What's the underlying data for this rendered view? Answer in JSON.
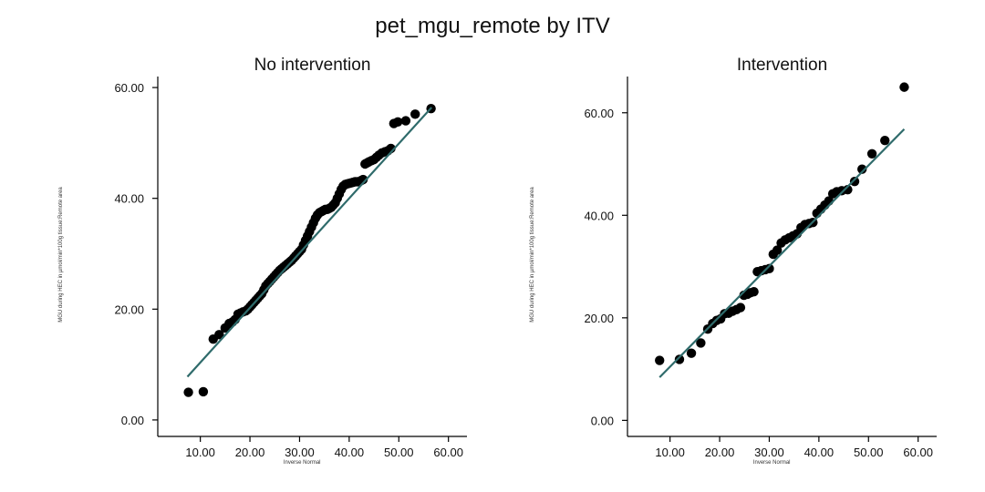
{
  "title": "pet_mgu_remote by ITV",
  "colors": {
    "point": "#000000",
    "line": "#2f6b6b"
  },
  "chart_data": [
    {
      "type": "scatter",
      "title": "No intervention",
      "xlabel": "Inverse Normal",
      "ylabel": "MGU during HEC in µmol/min*100g tissue:Remote area",
      "xlim": [
        4,
        63
      ],
      "ylim": [
        -1,
        61
      ],
      "xticks": [
        "10.00",
        "20.00",
        "30.00",
        "40.00",
        "50.00",
        "60.00"
      ],
      "yticks": [
        "0.00",
        "20.00",
        "40.00",
        "60.00"
      ],
      "points": {
        "x": [
          7.6,
          10.6,
          12.6,
          13.8,
          15.0,
          15.8,
          16.5,
          17.0,
          17.6,
          18.1,
          18.6,
          19.2,
          19.6,
          20.0,
          20.4,
          20.8,
          21.2,
          21.6,
          22.0,
          22.4,
          22.8,
          23.2,
          23.6,
          24.0,
          24.4,
          24.8,
          25.2,
          25.6,
          26.0,
          26.4,
          26.8,
          27.2,
          27.6,
          28.0,
          28.4,
          28.8,
          29.2,
          29.6,
          30.0,
          30.4,
          30.8,
          31.2,
          31.6,
          32.0,
          32.4,
          32.8,
          33.2,
          33.6,
          34.0,
          34.4,
          34.8,
          35.2,
          35.6,
          36.0,
          36.4,
          36.8,
          37.2,
          37.6,
          38.0,
          38.4,
          38.8,
          39.2,
          39.6,
          40.0,
          40.4,
          40.8,
          41.2,
          41.6,
          42.0,
          42.4,
          42.8,
          43.2,
          43.6,
          44.0,
          44.5,
          45.0,
          45.5,
          46.0,
          46.6,
          47.2,
          47.8,
          48.4,
          49.0,
          49.8,
          51.4,
          53.3,
          56.5
        ],
        "y": [
          5.0,
          5.1,
          14.6,
          15.4,
          16.6,
          17.4,
          17.7,
          18.1,
          19.1,
          19.3,
          19.5,
          19.7,
          20.0,
          20.4,
          20.8,
          21.2,
          21.6,
          22.0,
          22.4,
          22.8,
          23.5,
          24.2,
          24.6,
          25.0,
          25.4,
          25.8,
          26.2,
          26.6,
          27.0,
          27.3,
          27.6,
          27.9,
          28.2,
          28.5,
          28.8,
          29.2,
          29.6,
          30.0,
          30.4,
          30.8,
          31.6,
          32.4,
          33.2,
          34.0,
          34.8,
          35.6,
          36.4,
          37.0,
          37.4,
          37.6,
          37.8,
          38.0,
          38.0,
          38.2,
          38.4,
          38.8,
          39.2,
          40.0,
          40.8,
          41.6,
          42.2,
          42.5,
          42.6,
          42.7,
          42.8,
          42.9,
          43.0,
          43.0,
          43.0,
          43.2,
          43.4,
          46.2,
          46.4,
          46.6,
          46.8,
          47.0,
          47.4,
          47.8,
          48.2,
          48.4,
          48.6,
          49.0,
          53.5,
          53.8,
          54.0,
          55.2,
          56.2
        ]
      },
      "fit_line": {
        "x": [
          7.4,
          56.6
        ],
        "y": [
          7.8,
          56.4
        ]
      }
    },
    {
      "type": "scatter",
      "title": "Intervention",
      "xlabel": "Inverse Normal",
      "ylabel": "MGU during HEC in µmol/min*100g tissue:Remote area",
      "xlim": [
        4,
        63
      ],
      "ylim": [
        -1,
        66
      ],
      "xticks": [
        "10.00",
        "20.00",
        "30.00",
        "40.00",
        "50.00",
        "60.00"
      ],
      "yticks": [
        "0.00",
        "20.00",
        "40.00",
        "60.00"
      ],
      "points": {
        "x": [
          7.9,
          11.9,
          14.3,
          16.2,
          17.6,
          18.6,
          19.4,
          20.2,
          21.0,
          21.8,
          22.6,
          23.4,
          24.2,
          24.9,
          25.6,
          26.2,
          26.9,
          27.6,
          28.4,
          29.2,
          30.0,
          30.8,
          31.6,
          32.4,
          33.2,
          34.0,
          34.8,
          35.6,
          36.4,
          37.2,
          38.0,
          38.8,
          39.6,
          40.4,
          41.2,
          42.0,
          42.8,
          43.6,
          44.6,
          45.8,
          47.2,
          48.7,
          50.7,
          53.3,
          57.2
        ],
        "y": [
          11.7,
          11.9,
          13.1,
          15.1,
          17.8,
          18.9,
          19.5,
          19.8,
          20.8,
          20.9,
          21.3,
          21.6,
          22.0,
          24.4,
          24.6,
          24.9,
          25.1,
          29.0,
          29.2,
          29.4,
          29.6,
          32.4,
          33.2,
          34.6,
          35.2,
          35.6,
          36.0,
          36.4,
          37.6,
          38.2,
          38.4,
          38.6,
          40.4,
          41.2,
          42.0,
          42.8,
          44.2,
          44.6,
          44.8,
          45.0,
          46.6,
          49.0,
          52.0,
          54.6,
          65.0
        ]
      },
      "fit_line": {
        "x": [
          7.9,
          57.2
        ],
        "y": [
          8.4,
          56.8
        ]
      }
    }
  ]
}
